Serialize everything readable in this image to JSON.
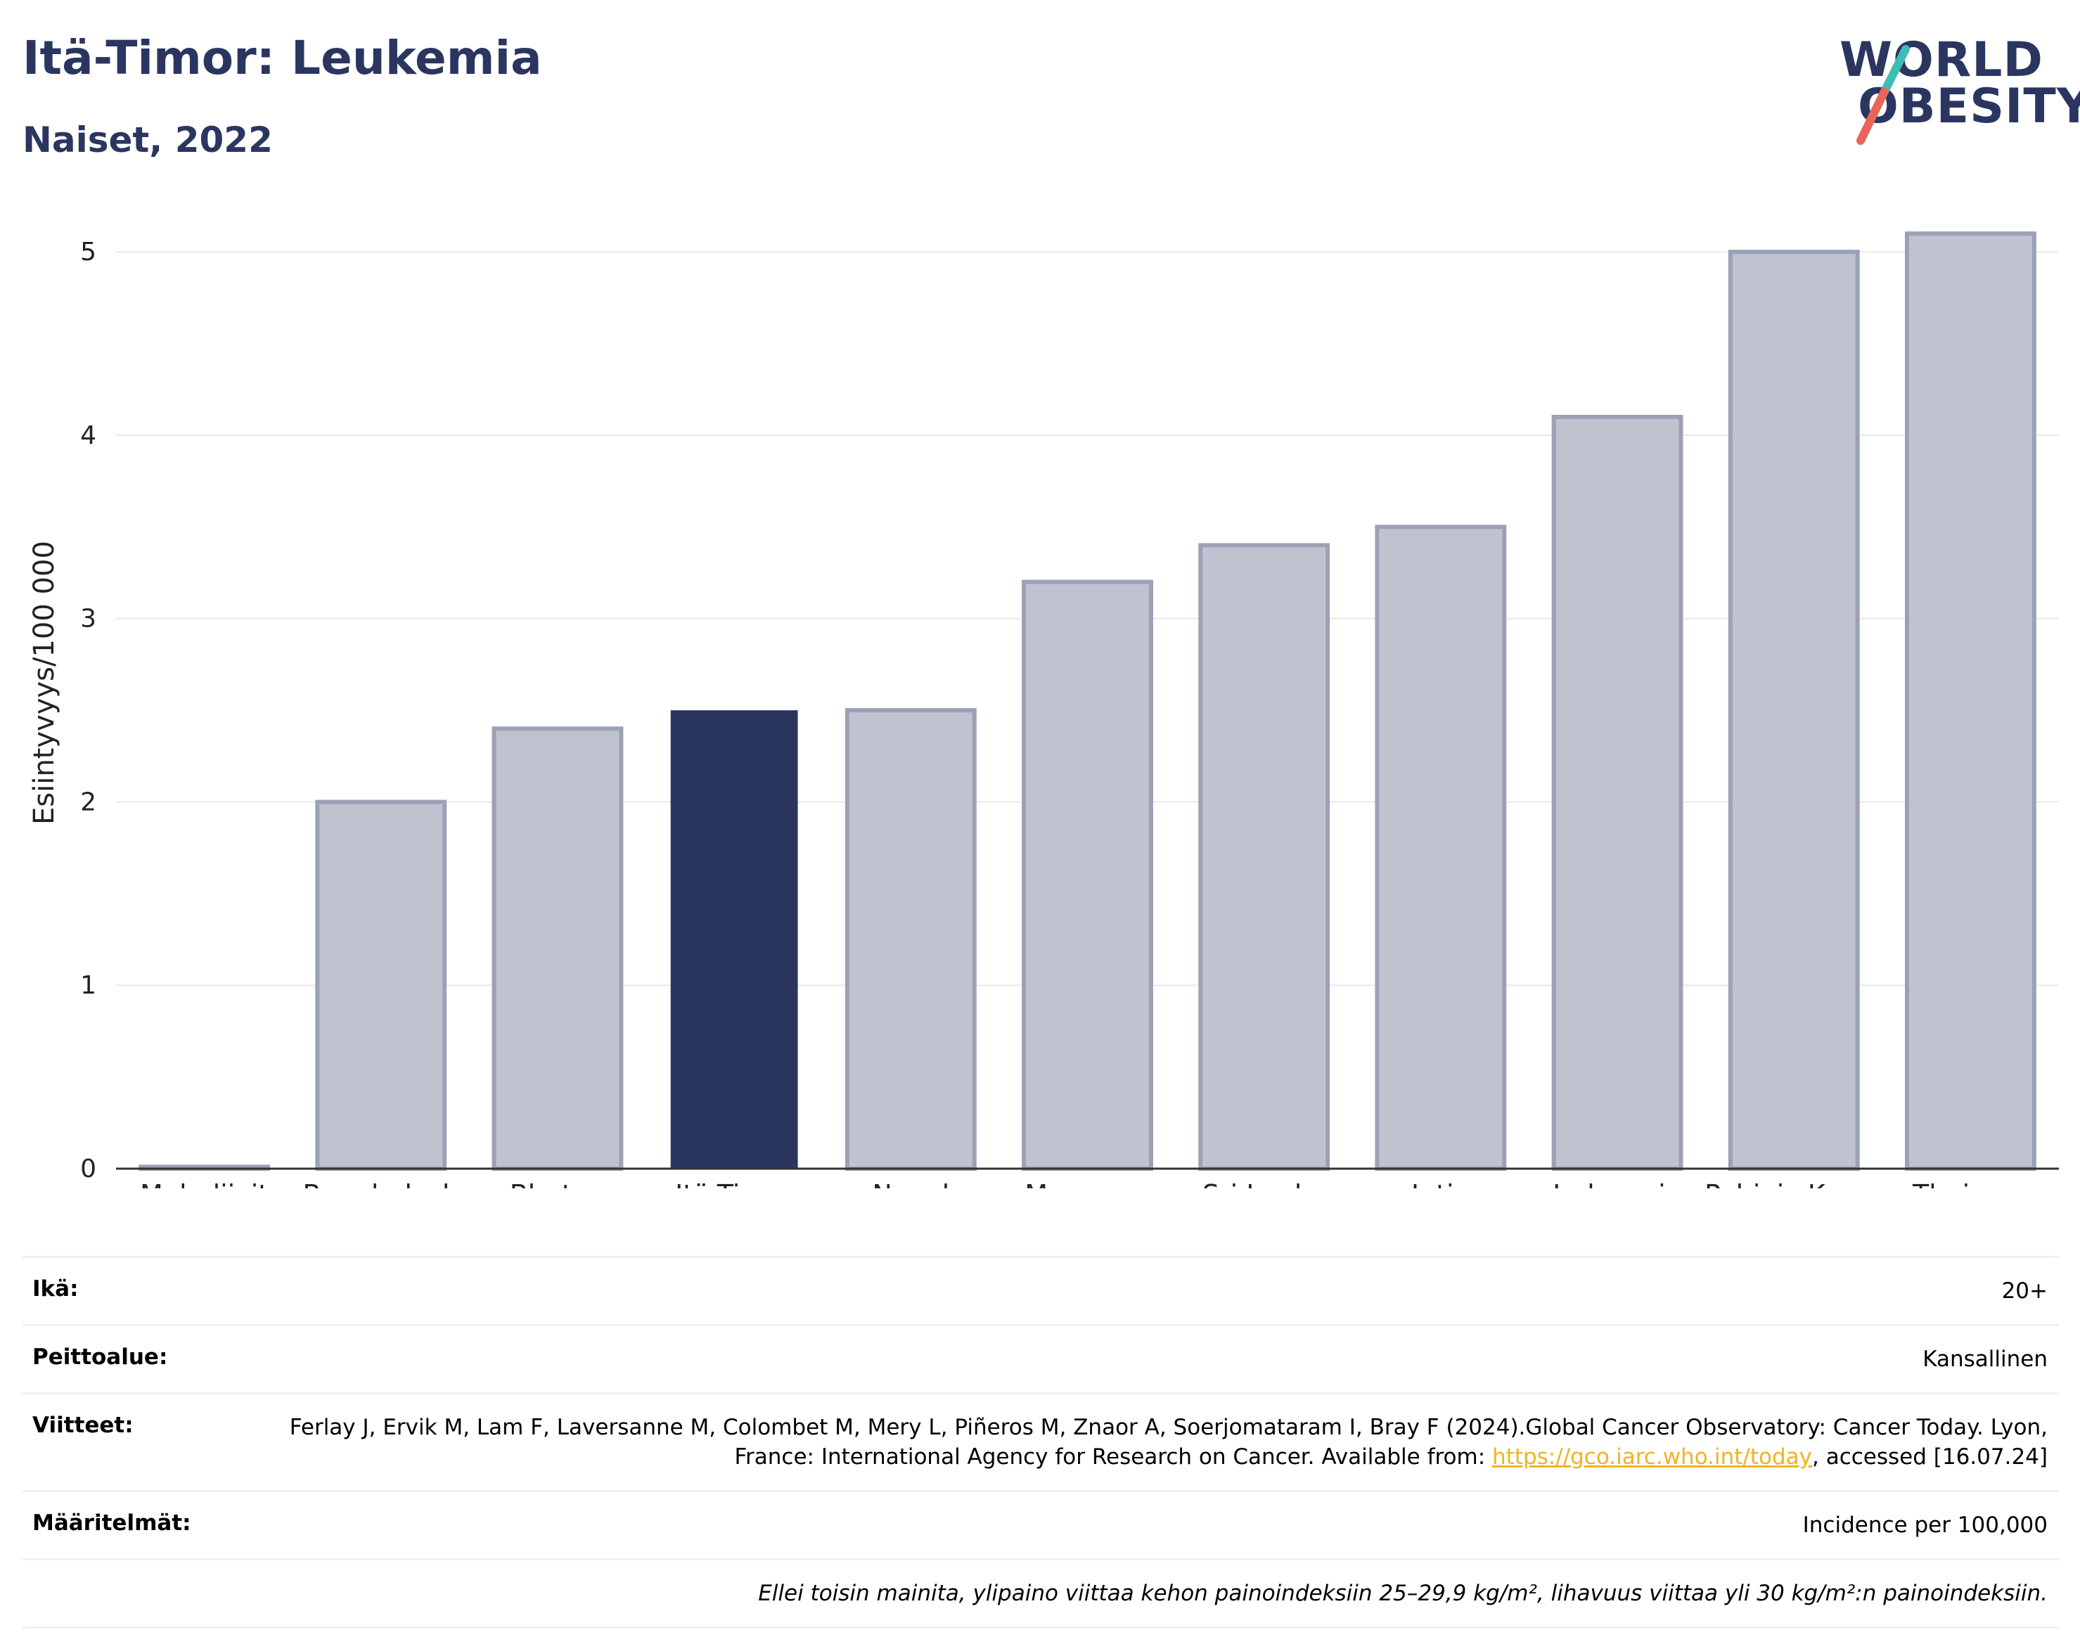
{
  "header": {
    "title": "Itä-Timor: Leukemia",
    "subtitle": "Naiset, 2022"
  },
  "logo": {
    "line1": "WORLD",
    "line2": "OBESITY",
    "colors": {
      "text": "#2b3660",
      "slash_top": "#3bbfb3",
      "slash_bottom": "#e8655a"
    }
  },
  "chart_data": {
    "type": "bar",
    "categories": [
      "Malediivit",
      "Bangladesh",
      "Bhutan",
      "Itä-Timor",
      "Nepal",
      "Myanmar",
      "Sri Lanka",
      "Intia",
      "Indonesia",
      "Pohjois-Korea",
      "Thaimaa"
    ],
    "values": [
      0.01,
      2.0,
      2.4,
      2.5,
      2.5,
      3.2,
      3.4,
      3.5,
      4.1,
      5.0,
      5.1
    ],
    "highlight": "Itä-Timor",
    "ylabel": "Esiintyvyys/100 000",
    "ylim": [
      0,
      5.3
    ],
    "yticks": [
      0,
      1,
      2,
      3,
      4,
      5
    ],
    "grid": true,
    "colors": {
      "highlight": "#2b3660",
      "bar_fill": "#c0c3cf",
      "bar_stroke": "#9ba1b6"
    }
  },
  "meta": {
    "rows": [
      {
        "label": "Ikä:",
        "value": "20+"
      },
      {
        "label": "Peittoalue:",
        "value": "Kansallinen"
      },
      {
        "label": "Viitteet:",
        "value_part1": "Ferlay J, Ervik M, Lam F, Laversanne M, Colombet M, Mery L, Piñeros M, Znaor A, Soerjomataram I, Bray F (2024).Global Cancer Observatory: Cancer Today. Lyon, France: International Agency for Research on Cancer. Available from: ",
        "link": "https://gco.iarc.who.int/today",
        "value_part2": ", accessed [16.07.24]"
      },
      {
        "label": "Määritelmät:",
        "value": "Incidence per 100,000"
      }
    ],
    "note": "Ellei toisin mainita, ylipaino viittaa kehon painoindeksiin 25–29,9 kg/m², lihavuus viittaa yli 30 kg/m²:n painoindeksiin."
  }
}
